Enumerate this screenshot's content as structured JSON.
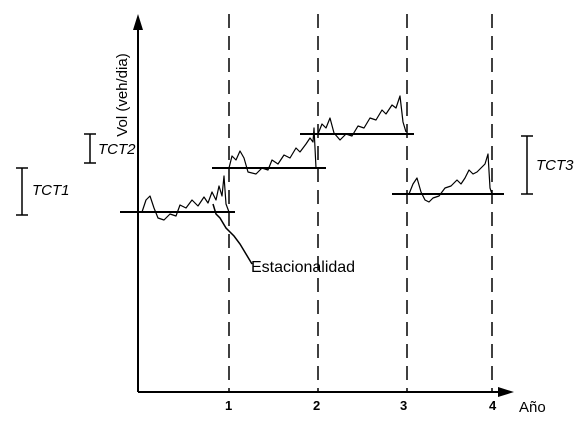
{
  "diagram": {
    "y_axis_label": "Vol (veh/dia)",
    "x_axis_label": "Año",
    "x_ticks": [
      "1",
      "2",
      "3",
      "4"
    ],
    "annotation": "Estacionalidad",
    "tct_labels": [
      "TCT1",
      "TCT2",
      "TCT3"
    ]
  }
}
